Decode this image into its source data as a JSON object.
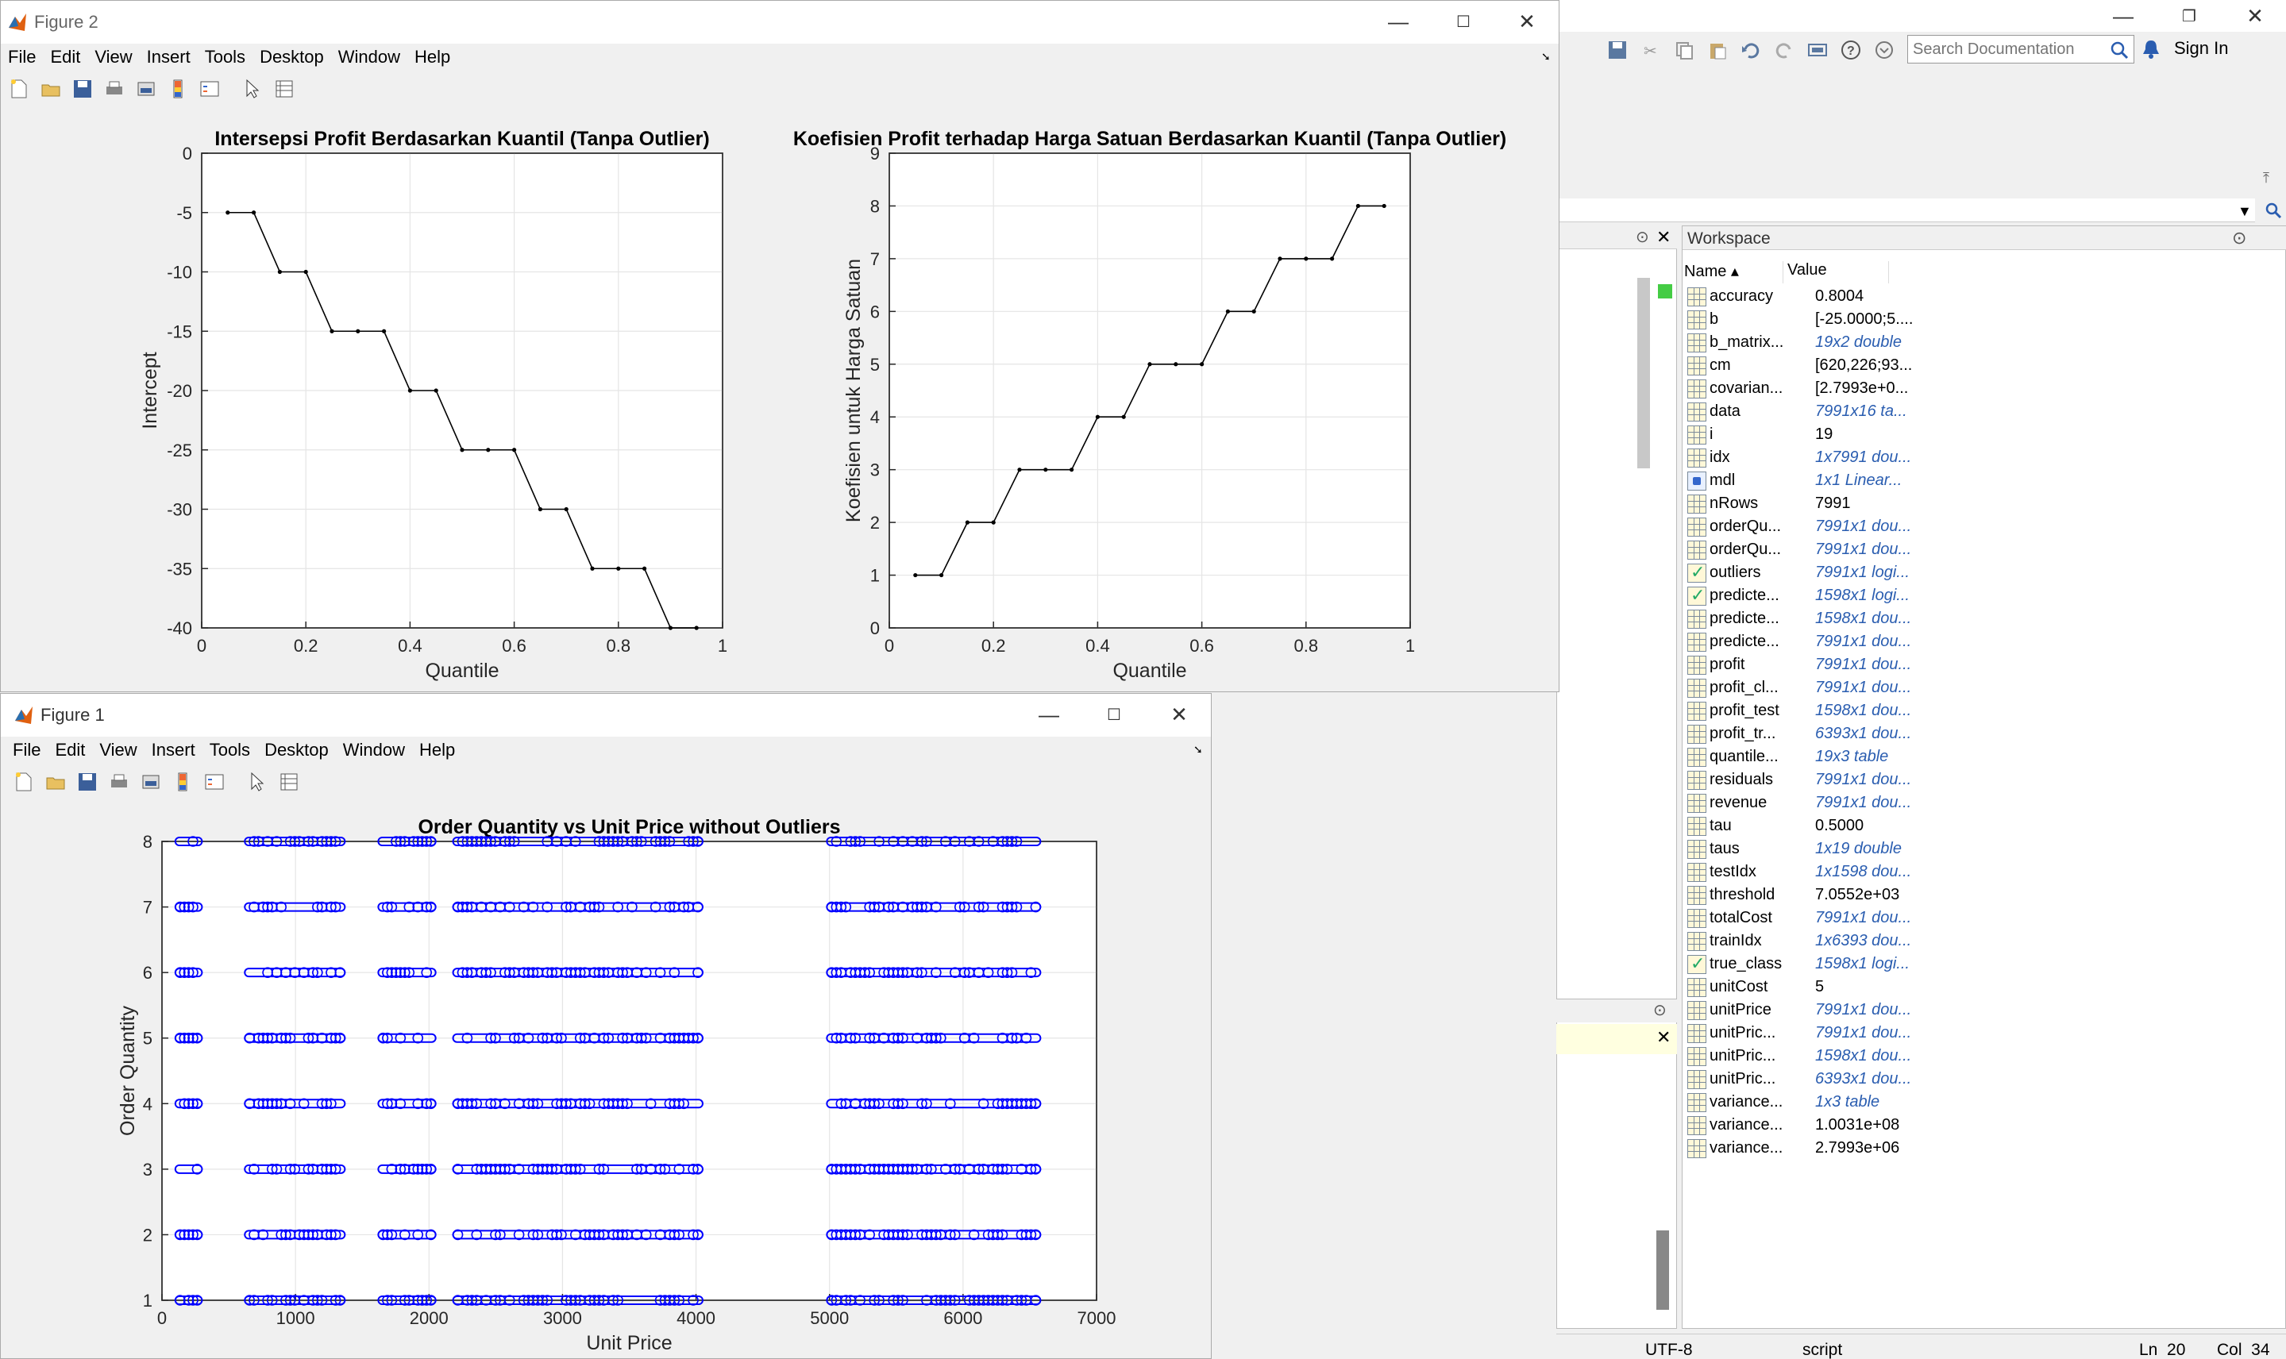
{
  "figure2": {
    "title": "Figure 2",
    "menu": [
      "File",
      "Edit",
      "View",
      "Insert",
      "Tools",
      "Desktop",
      "Window",
      "Help"
    ],
    "plot1": {
      "title": "Intersepsi Profit Berdasarkan Kuantil (Tanpa Outlier)",
      "xlabel": "Quantile",
      "ylabel": "Intercept",
      "xticks": [
        "0",
        "0.2",
        "0.4",
        "0.6",
        "0.8",
        "1"
      ],
      "yticks": [
        "0",
        "-5",
        "-10",
        "-15",
        "-20",
        "-25",
        "-30",
        "-35",
        "-40"
      ]
    },
    "plot2": {
      "title": "Koefisien Profit terhadap Harga Satuan Berdasarkan Kuantil (Tanpa Outlier)",
      "xlabel": "Quantile",
      "ylabel": "Koefisien untuk Harga Satuan",
      "xticks": [
        "0",
        "0.2",
        "0.4",
        "0.6",
        "0.8",
        "1"
      ],
      "yticks": [
        "0",
        "1",
        "2",
        "3",
        "4",
        "5",
        "6",
        "7",
        "8",
        "9"
      ]
    }
  },
  "figure1": {
    "title": "Figure 1",
    "menu": [
      "File",
      "Edit",
      "View",
      "Insert",
      "Tools",
      "Desktop",
      "Window",
      "Help"
    ],
    "plot": {
      "title": "Order Quantity vs Unit Price without Outliers",
      "xlabel": "Unit Price",
      "ylabel": "Order Quantity",
      "xticks": [
        "0",
        "1000",
        "2000",
        "3000",
        "4000",
        "5000",
        "6000",
        "7000"
      ],
      "yticks": [
        "1",
        "2",
        "3",
        "4",
        "5",
        "6",
        "7",
        "8"
      ]
    }
  },
  "matlab": {
    "search_placeholder": "Search Documentation",
    "sign_in": "Sign In",
    "status": {
      "encoding": "UTF-8",
      "type": "script",
      "ln": "Ln  20",
      "col": "Col  34"
    }
  },
  "workspace": {
    "title": "Workspace",
    "col_name": "Name ▴",
    "col_value": "Value",
    "rows": [
      {
        "name": "accuracy",
        "value": "0.8004",
        "icon": "grid",
        "italic": false
      },
      {
        "name": "b",
        "value": "[-25.0000;5....",
        "icon": "grid",
        "italic": false
      },
      {
        "name": "b_matrix...",
        "value": "19x2 double",
        "icon": "grid",
        "italic": true
      },
      {
        "name": "cm",
        "value": "[620,226;93...",
        "icon": "grid",
        "italic": false
      },
      {
        "name": "covarian...",
        "value": "[2.7993e+0...",
        "icon": "grid",
        "italic": false
      },
      {
        "name": "data",
        "value": "7991x16 ta...",
        "icon": "grid",
        "italic": true
      },
      {
        "name": "i",
        "value": "19",
        "icon": "grid",
        "italic": false
      },
      {
        "name": "idx",
        "value": "1x7991 dou...",
        "icon": "grid",
        "italic": true
      },
      {
        "name": "mdl",
        "value": "1x1 Linear...",
        "icon": "obj",
        "italic": true
      },
      {
        "name": "nRows",
        "value": "7991",
        "icon": "grid",
        "italic": false
      },
      {
        "name": "orderQu...",
        "value": "7991x1 dou...",
        "icon": "grid",
        "italic": true
      },
      {
        "name": "orderQu...",
        "value": "7991x1 dou...",
        "icon": "grid",
        "italic": true
      },
      {
        "name": "outliers",
        "value": "7991x1 logi...",
        "icon": "check",
        "italic": true
      },
      {
        "name": "predicte...",
        "value": "1598x1 logi...",
        "icon": "check",
        "italic": true
      },
      {
        "name": "predicte...",
        "value": "1598x1 dou...",
        "icon": "grid",
        "italic": true
      },
      {
        "name": "predicte...",
        "value": "7991x1 dou...",
        "icon": "grid",
        "italic": true
      },
      {
        "name": "profit",
        "value": "7991x1 dou...",
        "icon": "grid",
        "italic": true
      },
      {
        "name": "profit_cl...",
        "value": "7991x1 dou...",
        "icon": "grid",
        "italic": true
      },
      {
        "name": "profit_test",
        "value": "1598x1 dou...",
        "icon": "grid",
        "italic": true
      },
      {
        "name": "profit_tr...",
        "value": "6393x1 dou...",
        "icon": "grid",
        "italic": true
      },
      {
        "name": "quantile...",
        "value": "19x3 table",
        "icon": "grid",
        "italic": true
      },
      {
        "name": "residuals",
        "value": "7991x1 dou...",
        "icon": "grid",
        "italic": true
      },
      {
        "name": "revenue",
        "value": "7991x1 dou...",
        "icon": "grid",
        "italic": true
      },
      {
        "name": "tau",
        "value": "0.5000",
        "icon": "grid",
        "italic": false
      },
      {
        "name": "taus",
        "value": "1x19 double",
        "icon": "grid",
        "italic": true
      },
      {
        "name": "testIdx",
        "value": "1x1598 dou...",
        "icon": "grid",
        "italic": true
      },
      {
        "name": "threshold",
        "value": "7.0552e+03",
        "icon": "grid",
        "italic": false
      },
      {
        "name": "totalCost",
        "value": "7991x1 dou...",
        "icon": "grid",
        "italic": true
      },
      {
        "name": "trainIdx",
        "value": "1x6393 dou...",
        "icon": "grid",
        "italic": true
      },
      {
        "name": "true_class",
        "value": "1598x1 logi...",
        "icon": "check",
        "italic": true
      },
      {
        "name": "unitCost",
        "value": "5",
        "icon": "grid",
        "italic": false
      },
      {
        "name": "unitPrice",
        "value": "7991x1 dou...",
        "icon": "grid",
        "italic": true
      },
      {
        "name": "unitPric...",
        "value": "7991x1 dou...",
        "icon": "grid",
        "italic": true
      },
      {
        "name": "unitPric...",
        "value": "1598x1 dou...",
        "icon": "grid",
        "italic": true
      },
      {
        "name": "unitPric...",
        "value": "6393x1 dou...",
        "icon": "grid",
        "italic": true
      },
      {
        "name": "variance...",
        "value": "1x3 table",
        "icon": "grid",
        "italic": true
      },
      {
        "name": "variance...",
        "value": "1.0031e+08",
        "icon": "grid",
        "italic": false
      },
      {
        "name": "variance...",
        "value": "2.7993e+06",
        "icon": "grid",
        "italic": false
      }
    ]
  },
  "chart_data": [
    {
      "type": "line",
      "title": "Intersepsi Profit Berdasarkan Kuantil (Tanpa Outlier)",
      "xlabel": "Quantile",
      "ylabel": "Intercept",
      "xlim": [
        0,
        1
      ],
      "ylim": [
        -40,
        0
      ],
      "grid": true,
      "x": [
        0.05,
        0.1,
        0.15,
        0.2,
        0.25,
        0.3,
        0.35,
        0.4,
        0.45,
        0.5,
        0.55,
        0.6,
        0.65,
        0.7,
        0.75,
        0.8,
        0.85,
        0.9,
        0.95
      ],
      "y": [
        -5,
        -5,
        -10,
        -10,
        -15,
        -15,
        -15,
        -20,
        -20,
        -25,
        -25,
        -25,
        -30,
        -30,
        -35,
        -35,
        -35,
        -40,
        -40
      ]
    },
    {
      "type": "line",
      "title": "Koefisien Profit terhadap Harga Satuan Berdasarkan Kuantil (Tanpa Outlier)",
      "xlabel": "Quantile",
      "ylabel": "Koefisien untuk Harga Satuan",
      "xlim": [
        0,
        1
      ],
      "ylim": [
        0,
        9
      ],
      "grid": true,
      "x": [
        0.05,
        0.1,
        0.15,
        0.2,
        0.25,
        0.3,
        0.35,
        0.4,
        0.45,
        0.5,
        0.55,
        0.6,
        0.65,
        0.7,
        0.75,
        0.8,
        0.85,
        0.9,
        0.95
      ],
      "y": [
        1,
        1,
        2,
        2,
        3,
        3,
        3,
        4,
        4,
        5,
        5,
        5,
        6,
        6,
        7,
        7,
        7,
        8,
        8
      ]
    },
    {
      "type": "scatter",
      "title": "Order Quantity vs Unit Price without Outliers",
      "xlabel": "Unit Price",
      "ylabel": "Order Quantity",
      "xlim": [
        0,
        7000
      ],
      "ylim": [
        1,
        8
      ],
      "grid": true,
      "color": "#0000ff",
      "quantities": [
        1,
        2,
        3,
        4,
        5,
        6,
        7,
        8
      ],
      "price_ranges": [
        [
          100,
          300
        ],
        [
          620,
          1370
        ],
        [
          1620,
          2050
        ],
        [
          2180,
          4050
        ],
        [
          4980,
          6580
        ]
      ]
    }
  ]
}
